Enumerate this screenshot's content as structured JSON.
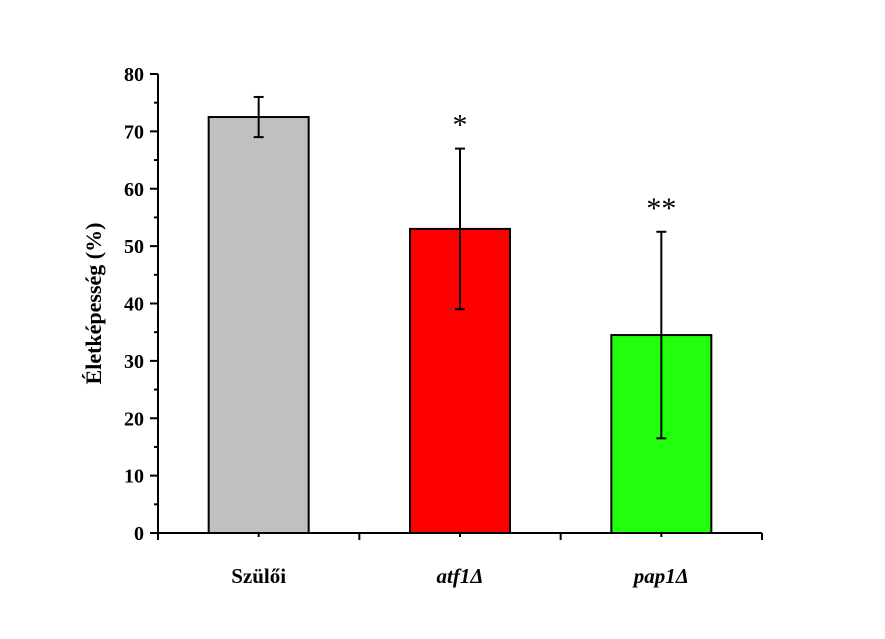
{
  "chart_data": {
    "type": "bar",
    "title": "",
    "xlabel": "",
    "ylabel": "Életképesség (%)",
    "ylim": [
      0,
      80
    ],
    "yticks": [
      0,
      10,
      20,
      30,
      40,
      50,
      60,
      70,
      80
    ],
    "grid": false,
    "legend": "none",
    "categories": [
      {
        "label": "Szülői",
        "italic": false
      },
      {
        "label": "atf1Δ",
        "italic": true
      },
      {
        "label": "pap1Δ",
        "italic": true
      }
    ],
    "values": [
      72.5,
      53,
      34.5
    ],
    "errors": [
      3.5,
      14,
      18
    ],
    "significance": [
      "",
      "*",
      "**"
    ],
    "colors": [
      "#c0c0c0",
      "#ff0000",
      "#22ff0d"
    ]
  }
}
